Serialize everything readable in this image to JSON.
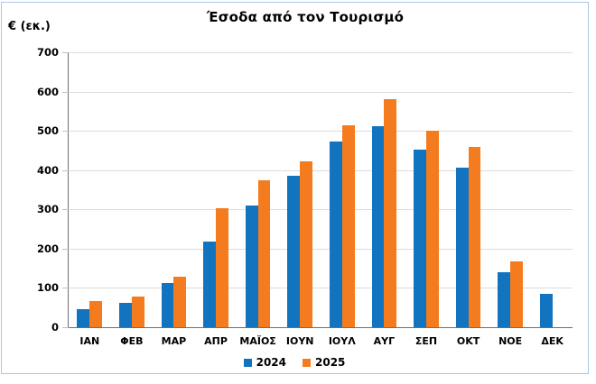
{
  "frame": {
    "border_color": "#a9c7ea",
    "background": "#ffffff"
  },
  "chart_data": {
    "type": "bar",
    "title": "Έσοδα από τον Τουρισμό",
    "y_axis_title": "€ (εκ.)",
    "xlabel": "",
    "ylabel": "€ (εκ.)",
    "categories": [
      "ΙΑΝ",
      "ΦΕΒ",
      "ΜΑΡ",
      "ΑΠΡ",
      "ΜΑΪΟΣ",
      "ΙΟΥΝ",
      "ΙΟΥΛ",
      "ΑΥΓ",
      "ΣΕΠ",
      "ΟΚΤ",
      "ΝΟΕ",
      "ΔΕΚ"
    ],
    "series": [
      {
        "name": "2024",
        "color": "#1273be",
        "values": [
          45,
          63,
          113,
          218,
          311,
          385,
          473,
          511,
          453,
          407,
          139,
          86
        ]
      },
      {
        "name": "2025",
        "color": "#f57c1e",
        "values": [
          67,
          78,
          128,
          304,
          374,
          422,
          513,
          581,
          500,
          458,
          168,
          null
        ]
      }
    ],
    "ylim": [
      0,
      700
    ],
    "y_ticks": [
      0,
      100,
      200,
      300,
      400,
      500,
      600,
      700
    ],
    "grid": true,
    "gridline_color": "#dcdcdc",
    "axis_color": "#6e6e6e",
    "legend_position": "bottom-center",
    "legend_entries": [
      "2024",
      "2025"
    ]
  }
}
